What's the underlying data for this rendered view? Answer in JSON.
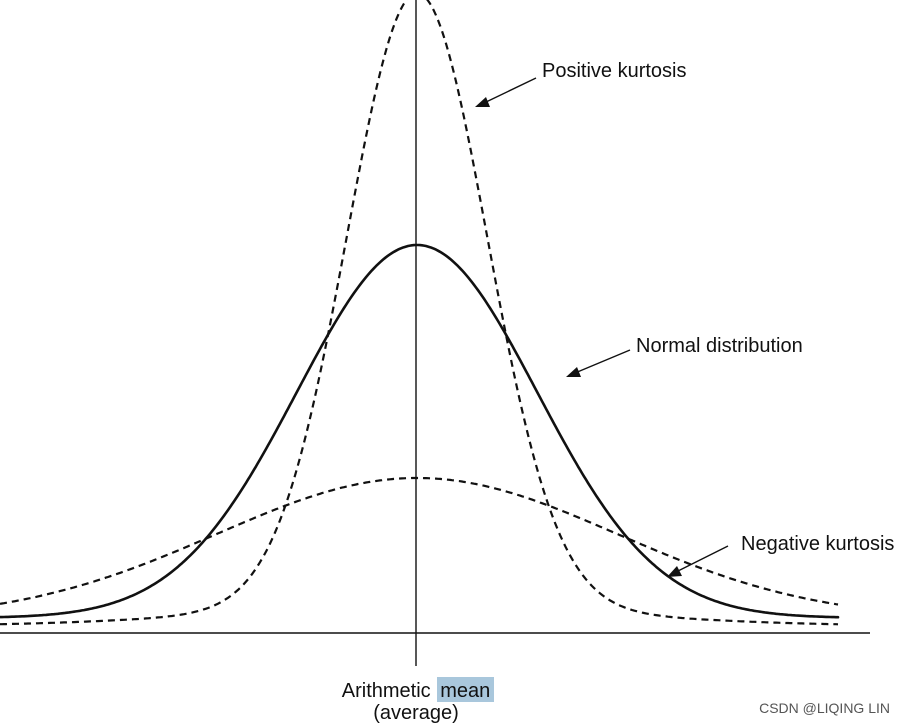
{
  "labels": {
    "positive": "Positive kurtosis",
    "normal": "Normal distribution",
    "negative": "Negative kurtosis",
    "mean_prefix": "Arithmetic",
    "mean_word": "mean",
    "average": "(average)"
  },
  "watermark": "CSDN @LIQING LIN",
  "colors": {
    "ink": "#111111",
    "highlight": "#a9c7dc",
    "watermark": "#555555"
  }
}
